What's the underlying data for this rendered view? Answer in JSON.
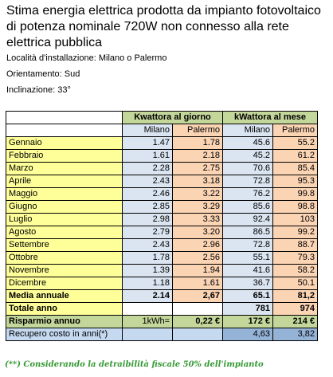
{
  "title": "Stima energia elettrica prodotta da impianto fotovoltaico di potenza nominale 720W non connesso alla rete elettrica pubblica",
  "meta": {
    "location": "Località d'installazione: Milano o Palermo",
    "orientation": "Orientamento: Sud",
    "inclination": "Inclinazione: 33°"
  },
  "table": {
    "header_day": "Kwattora al giorno",
    "header_month": "kWattora al mese",
    "sub_headers": [
      "Milano",
      "Palermo",
      "Milano",
      "Palermo"
    ],
    "rows": [
      {
        "month": "Gennaio",
        "day_mi": "1.47",
        "day_pa": "1.78",
        "mon_mi": "45.6",
        "mon_pa": "55.2"
      },
      {
        "month": "Febbraio",
        "day_mi": "1.61",
        "day_pa": "2.18",
        "mon_mi": "45.2",
        "mon_pa": "61.2"
      },
      {
        "month": "Marzo",
        "day_mi": "2.28",
        "day_pa": "2.75",
        "mon_mi": "70.6",
        "mon_pa": "85.4"
      },
      {
        "month": "Aprile",
        "day_mi": "2.43",
        "day_pa": "3.18",
        "mon_mi": "72.8",
        "mon_pa": "95.3"
      },
      {
        "month": "Maggio",
        "day_mi": "2.46",
        "day_pa": "3.22",
        "mon_mi": "76.2",
        "mon_pa": "99.8"
      },
      {
        "month": "Giugno",
        "day_mi": "2.85",
        "day_pa": "3.29",
        "mon_mi": "85.6",
        "mon_pa": "98.8"
      },
      {
        "month": "Luglio",
        "day_mi": "2.98",
        "day_pa": "3.33",
        "mon_mi": "92.4",
        "mon_pa": "103"
      },
      {
        "month": "Agosto",
        "day_mi": "2.79",
        "day_pa": "3.20",
        "mon_mi": "86.5",
        "mon_pa": "99.2"
      },
      {
        "month": "Settembre",
        "day_mi": "2.43",
        "day_pa": "2.96",
        "mon_mi": "72.8",
        "mon_pa": "88.7"
      },
      {
        "month": "Ottobre",
        "day_mi": "1.78",
        "day_pa": "2.56",
        "mon_mi": "55.1",
        "mon_pa": "79.3"
      },
      {
        "month": "Novembre",
        "day_mi": "1.39",
        "day_pa": "1.94",
        "mon_mi": "41.6",
        "mon_pa": "58.2"
      },
      {
        "month": "Dicembre",
        "day_mi": "1.18",
        "day_pa": "1.61",
        "mon_mi": "36.7",
        "mon_pa": "50.1"
      }
    ],
    "media": {
      "label": "Media annuale",
      "day_mi": "2.14",
      "day_pa": "2,67",
      "mon_mi": "65.1",
      "mon_pa": "81,2"
    },
    "totale": {
      "label": "Totale anno",
      "mon_mi": "781",
      "mon_pa": "974"
    },
    "risparmio": {
      "label": "Risparmio annuo",
      "unit": "1kWh=",
      "price": "0,22 €",
      "mon_mi": "172 €",
      "mon_pa": "214 €"
    },
    "recupero": {
      "label": "Recupero costo in anni(*)",
      "mon_mi": "4,63",
      "mon_pa": "3,82"
    }
  },
  "footnote": "(**) Considerando la detraibilità fiscale 50% dell'impianto",
  "colors": {
    "header_green": "#c4d79b",
    "milano_blue": "#dbe5f1",
    "palermo_orange": "#fbd4b4",
    "month_yellow": "#ffff99",
    "footnote_green": "#339933"
  }
}
